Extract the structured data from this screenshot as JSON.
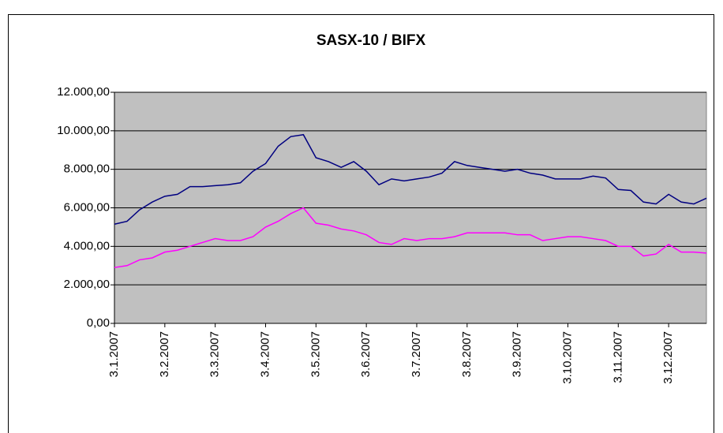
{
  "chart_data": {
    "type": "line",
    "title": "SASX-10 / BIFX",
    "categories": [
      "3.1.2007",
      null,
      null,
      null,
      "3.2.2007",
      null,
      null,
      null,
      "3.3.2007",
      null,
      null,
      null,
      "3.4.2007",
      null,
      null,
      null,
      "3.5.2007",
      null,
      null,
      null,
      "3.6.2007",
      null,
      null,
      null,
      "3.7.2007",
      null,
      null,
      null,
      "3.8.2007",
      null,
      null,
      null,
      "3.9.2007",
      null,
      null,
      null,
      "3.10.2007",
      null,
      null,
      null,
      "3.11.2007",
      null,
      null,
      null,
      "3.12.2007",
      null,
      null,
      null
    ],
    "series": [
      {
        "color": "#000080",
        "values": [
          5150,
          5300,
          5900,
          6300,
          6600,
          6700,
          7100,
          7100,
          7150,
          7200,
          7300,
          7900,
          8300,
          9200,
          9700,
          9800,
          8600,
          8400,
          8100,
          8400,
          7900,
          7200,
          7500,
          7400,
          7500,
          7600,
          7800,
          8400,
          8200,
          8100,
          8000,
          7900,
          8000,
          7800,
          7700,
          7500,
          7500,
          7500,
          7650,
          7550,
          6950,
          6900,
          6300,
          6200,
          6700,
          6300,
          6200,
          6500
        ]
      },
      {
        "color": "#ff00ff",
        "values": [
          2900,
          3000,
          3300,
          3400,
          3700,
          3800,
          4000,
          4200,
          4400,
          4300,
          4300,
          4500,
          5000,
          5300,
          5700,
          6000,
          5200,
          5100,
          4900,
          4800,
          4600,
          4200,
          4100,
          4400,
          4300,
          4400,
          4400,
          4500,
          4700,
          4700,
          4700,
          4700,
          4600,
          4600,
          4300,
          4400,
          4500,
          4500,
          4400,
          4300,
          4000,
          4000,
          3500,
          3600,
          4100,
          3700,
          3700,
          3650
        ]
      }
    ],
    "ylim": [
      0,
      12000
    ],
    "yticks": [
      {
        "value": 0,
        "label": "0,00"
      },
      {
        "value": 2000,
        "label": "2.000,00"
      },
      {
        "value": 4000,
        "label": "4.000,00"
      },
      {
        "value": 6000,
        "label": "6.000,00"
      },
      {
        "value": 8000,
        "label": "8.000,00"
      },
      {
        "value": 10000,
        "label": "10.000,00"
      },
      {
        "value": 12000,
        "label": "12.000,00"
      }
    ],
    "grid": true,
    "plot_background": "#c0c0c0"
  }
}
